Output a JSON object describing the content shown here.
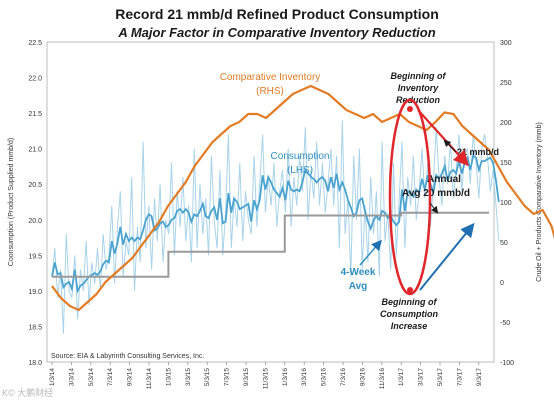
{
  "chart_data": {
    "type": "line",
    "title": "Record 21 mmb/d Refined Product Consumption",
    "subtitle": "A Major Factor in Comparative Inventory Reduction",
    "ylabel_left": "Coonsumption (Product Supplied mmb/d)",
    "ylabel_right": "Crude Oil + Products Comparative Inventory (mmb)",
    "ylim_left": [
      18.0,
      22.5
    ],
    "ylim_right": [
      -100,
      300
    ],
    "yticks_left": [
      "18.0",
      "18.5",
      "19.0",
      "19.5",
      "20.0",
      "20.5",
      "21.0",
      "21.5",
      "22.0",
      "22.5"
    ],
    "yticks_right": [
      "-100",
      "-50",
      "0",
      "50",
      "100",
      "150",
      "200",
      "250",
      "300"
    ],
    "xtick_labels": [
      "1/3/14",
      "3/3/14",
      "5/3/14",
      "7/3/14",
      "9/3/14",
      "11/3/14",
      "1/3/15",
      "3/3/15",
      "5/3/15",
      "7/3/15",
      "9/3/15",
      "11/3/15",
      "1/3/16",
      "3/3/16",
      "5/3/16",
      "7/3/16",
      "9/3/16",
      "11/3/16",
      "1/3/17",
      "3/3/17",
      "5/3/17",
      "7/3/17",
      "9/3/17"
    ],
    "source": "Source:  EIA & Labyrinth Consulting Services, Inc.",
    "series": [
      {
        "name": "Consumption (LHS)",
        "axis": "left",
        "color": "#4aa3cf",
        "values": [
          19.2,
          19.6,
          18.9,
          19.3,
          18.4,
          19.8,
          19.0,
          18.9,
          19.5,
          18.6,
          19.3,
          19.0,
          19.7,
          18.8,
          19.4,
          19.1,
          19.6,
          19.0,
          19.8,
          19.3,
          19.5,
          20.2,
          19.1,
          19.9,
          20.4,
          19.2,
          19.7,
          19.5,
          20.6,
          19.0,
          19.9,
          19.4,
          21.1,
          19.6,
          20.2,
          19.3,
          20.3,
          19.7,
          20.5,
          19.4,
          20.0,
          19.8,
          20.8,
          19.5,
          20.4,
          19.9,
          20.6,
          19.7,
          20.2,
          19.4,
          21.0,
          19.6,
          20.5,
          19.8,
          20.3,
          19.5,
          20.9,
          20.0,
          19.6,
          20.7,
          19.5,
          20.1,
          21.2,
          19.6,
          20.3,
          19.9,
          20.8,
          19.7,
          20.4,
          20.0,
          19.8,
          20.9,
          19.9,
          20.5,
          21.2,
          20.1,
          20.6,
          20.2,
          20.8,
          19.9,
          20.4,
          20.7,
          20.1,
          21.0,
          19.9,
          20.6,
          20.2,
          20.9,
          20.4,
          21.3,
          20.0,
          20.7,
          20.3,
          21.1,
          20.2,
          20.8,
          20.1,
          20.5,
          21.0,
          20.2,
          20.9,
          19.6,
          21.4,
          19.8,
          20.3,
          19.2,
          20.9,
          20.0,
          21.0,
          19.3,
          20.2,
          19.4,
          20.6,
          19.8,
          20.4,
          19.2,
          21.1,
          19.7,
          20.1,
          19.3,
          20.8,
          19.5,
          20.3,
          21.1,
          19.6,
          20.6,
          20.2,
          20.9,
          20.0,
          20.4,
          21.0,
          20.3,
          20.8,
          19.9,
          20.5,
          21.3,
          20.6,
          20.2,
          20.9,
          20.5,
          21.1,
          20.3,
          20.7,
          21.2,
          20.4,
          20.9,
          21.0,
          20.5,
          21.2,
          20.8,
          20.3,
          21.0,
          21.2,
          20.9,
          20.4,
          20.7,
          20.2,
          19.7
        ]
      },
      {
        "name": "Comparative Inventory (RHS)",
        "axis": "right",
        "color": "#e37b24",
        "x": [
          0,
          4,
          8,
          12,
          16,
          20,
          24,
          28,
          32,
          36,
          40,
          44,
          48,
          52,
          56,
          60,
          64,
          68,
          72,
          76,
          80,
          84,
          88,
          92,
          96,
          100,
          104,
          108,
          112,
          116,
          120,
          124,
          128,
          132,
          136,
          140,
          144,
          148,
          152,
          156,
          160,
          164,
          168,
          172,
          176,
          180,
          184,
          188,
          192,
          196,
          200,
          204,
          208,
          212,
          216,
          220,
          224,
          227
        ],
        "values": [
          -5,
          -20,
          -30,
          -35,
          -25,
          -15,
          0,
          10,
          20,
          30,
          45,
          60,
          75,
          95,
          110,
          125,
          145,
          160,
          175,
          185,
          195,
          200,
          210,
          210,
          205,
          215,
          225,
          235,
          240,
          245,
          240,
          235,
          225,
          215,
          210,
          205,
          210,
          200,
          205,
          210,
          200,
          195,
          190,
          200,
          212,
          210,
          195,
          185,
          175,
          165,
          145,
          125,
          110,
          95,
          85,
          90,
          70,
          40
        ]
      },
      {
        "name": "Annual Avg",
        "axis": "left",
        "color": "#9a9a9a",
        "segments": [
          {
            "from": "1/3/14",
            "to": "1/3/15",
            "value": 19.2
          },
          {
            "from": "1/3/15",
            "to": "1/3/16",
            "value": 19.55
          },
          {
            "from": "1/3/16",
            "to": "1/3/17",
            "value": 20.06
          },
          {
            "from": "1/3/17",
            "to": "9/3/17",
            "value": 20.1
          }
        ]
      }
    ],
    "annotations": {
      "comp_inventory": [
        "Comparative Inventory",
        "(RHS)"
      ],
      "consumption": [
        "Consumption",
        "(LHS)"
      ],
      "four_week_avg": [
        "4-Week",
        "Avg"
      ],
      "annual_avg": [
        "Annual",
        "Avg 20 mmb/d"
      ],
      "record": "21 mmb/d",
      "inventory_reduction": [
        "Beginning of",
        "Inventory",
        "Reduction"
      ],
      "consumption_increase": [
        "Beginning of",
        "Consumption",
        "Increase"
      ]
    }
  },
  "watermark": "K© 大鹏财经"
}
